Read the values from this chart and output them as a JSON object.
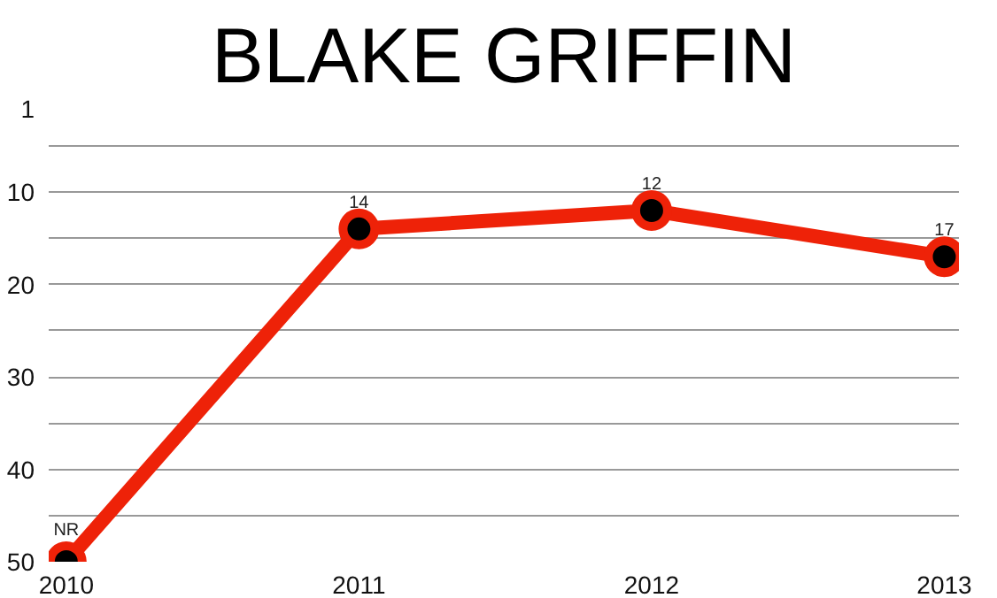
{
  "chart_data": {
    "type": "line",
    "title": "BLAKE GRIFFIN",
    "categories": [
      "2010",
      "2011",
      "2012",
      "2013"
    ],
    "series": [
      {
        "color": "#ee2208",
        "values": [
          50,
          14,
          12,
          17
        ],
        "value_labels": [
          "NR",
          "14",
          "12",
          "17"
        ]
      }
    ],
    "ylim": [
      50,
      1
    ],
    "yticks": [
      1,
      {
        "value": 5,
        "label": null
      },
      10,
      {
        "value": 15,
        "label": null
      },
      20,
      {
        "value": 25,
        "label": null
      },
      30,
      {
        "value": 35,
        "label": null
      },
      40,
      {
        "value": 45,
        "label": null
      },
      50
    ],
    "grid": "y",
    "marker": "circle",
    "line_style": "solid"
  }
}
